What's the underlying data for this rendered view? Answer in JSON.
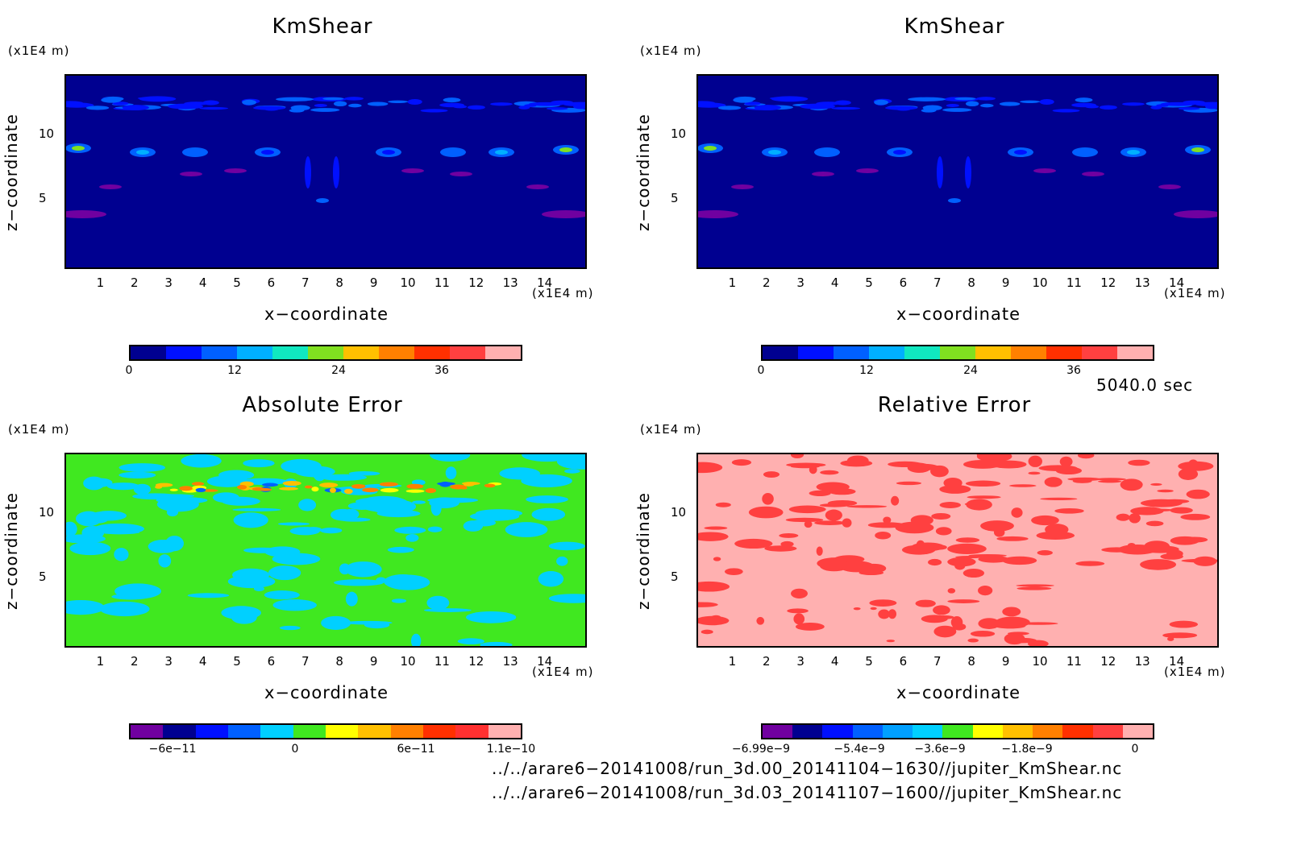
{
  "panels": [
    {
      "title": "KmShear",
      "ylabel": "z−coordinate",
      "xlabel": "x−coordinate",
      "unit": "(x1E4 m)",
      "xticks": [
        "1",
        "2",
        "3",
        "4",
        "5",
        "6",
        "7",
        "8",
        "9",
        "10",
        "11",
        "12",
        "13",
        "14"
      ],
      "yticks": [
        "5",
        "10"
      ],
      "colorbar_colors": [
        "#000090",
        "#0010ff",
        "#0060ff",
        "#00b0ff",
        "#10e8c0",
        "#80e020",
        "#ffc000",
        "#ff8000",
        "#ff3000",
        "#ff4040",
        "#ffb0b0"
      ],
      "colorbar_ticks": [
        "0",
        "12",
        "24",
        "36"
      ],
      "field": "shear"
    },
    {
      "title": "KmShear",
      "ylabel": "z−coordinate",
      "xlabel": "x−coordinate",
      "unit": "(x1E4 m)",
      "xticks": [
        "1",
        "2",
        "3",
        "4",
        "5",
        "6",
        "7",
        "8",
        "9",
        "10",
        "11",
        "12",
        "13",
        "14"
      ],
      "yticks": [
        "5",
        "10"
      ],
      "colorbar_colors": [
        "#000090",
        "#0010ff",
        "#0060ff",
        "#00b0ff",
        "#10e8c0",
        "#80e020",
        "#ffc000",
        "#ff8000",
        "#ff3000",
        "#ff4040",
        "#ffb0b0"
      ],
      "colorbar_ticks": [
        "0",
        "12",
        "24",
        "36"
      ],
      "field": "shear"
    },
    {
      "title": "Absolute Error",
      "ylabel": "z−coordinate",
      "xlabel": "x−coordinate",
      "unit": "(x1E4 m)",
      "xticks": [
        "1",
        "2",
        "3",
        "4",
        "5",
        "6",
        "7",
        "8",
        "9",
        "10",
        "11",
        "12",
        "13",
        "14"
      ],
      "yticks": [
        "5",
        "10"
      ],
      "colorbar_colors": [
        "#7000a0",
        "#000090",
        "#0010ff",
        "#0060ff",
        "#00d0ff",
        "#40e820",
        "#ffff00",
        "#ffc000",
        "#ff8000",
        "#ff3000",
        "#ff3030",
        "#ffb0b0"
      ],
      "colorbar_ticks": [
        "−6e−11",
        "0",
        "6e−11",
        "1.1e−10"
      ],
      "field": "abs"
    },
    {
      "title": "Relative Error",
      "ylabel": "z−coordinate",
      "xlabel": "x−coordinate",
      "unit": "(x1E4 m)",
      "xticks": [
        "1",
        "2",
        "3",
        "4",
        "5",
        "6",
        "7",
        "8",
        "9",
        "10",
        "11",
        "12",
        "13",
        "14"
      ],
      "yticks": [
        "5",
        "10"
      ],
      "colorbar_colors": [
        "#7000a0",
        "#000090",
        "#0010ff",
        "#0060ff",
        "#00a0ff",
        "#00d0ff",
        "#40e820",
        "#ffff00",
        "#ffc000",
        "#ff8000",
        "#ff3000",
        "#ff4040",
        "#ffb0b0"
      ],
      "colorbar_ticks": [
        "−6.99e−9",
        "−5.4e−9",
        "−3.6e−9",
        "−1.8e−9",
        "0"
      ],
      "field": "rel"
    }
  ],
  "time_label": "5040.0 sec",
  "file_1": "../../arare6−20141008/run_3d.00_20141104−1630//jupiter_KmShear.nc",
  "file_2": "../../arare6−20141008/run_3d.03_20141107−1600//jupiter_KmShear.nc",
  "chart_data": [
    {
      "type": "heatmap",
      "title": "KmShear",
      "xlabel": "x−coordinate",
      "ylabel": "z−coordinate",
      "x_unit": "(x1E4 m)",
      "y_unit": "(x1E4 m)",
      "xlim": [
        0,
        15
      ],
      "ylim": [
        0,
        14.5
      ],
      "colorbar_ticks": [
        0,
        12,
        24,
        36
      ]
    },
    {
      "type": "heatmap",
      "title": "KmShear",
      "xlabel": "x−coordinate",
      "ylabel": "z−coordinate",
      "x_unit": "(x1E4 m)",
      "y_unit": "(x1E4 m)",
      "xlim": [
        0,
        15
      ],
      "ylim": [
        0,
        14.5
      ],
      "colorbar_ticks": [
        0,
        12,
        24,
        36
      ]
    },
    {
      "type": "heatmap",
      "title": "Absolute Error",
      "xlabel": "x−coordinate",
      "ylabel": "z−coordinate",
      "x_unit": "(x1E4 m)",
      "y_unit": "(x1E4 m)",
      "xlim": [
        0,
        15
      ],
      "ylim": [
        0,
        14.5
      ],
      "colorbar_ticks": [
        -6e-11,
        0,
        6e-11,
        1.1e-10
      ]
    },
    {
      "type": "heatmap",
      "title": "Relative Error",
      "xlabel": "x−coordinate",
      "ylabel": "z−coordinate",
      "x_unit": "(x1E4 m)",
      "y_unit": "(x1E4 m)",
      "xlim": [
        0,
        15
      ],
      "ylim": [
        0,
        14.5
      ],
      "colorbar_ticks": [
        -6.99e-09,
        -5.4e-09,
        -3.6e-09,
        -1.8e-09,
        0
      ]
    }
  ]
}
